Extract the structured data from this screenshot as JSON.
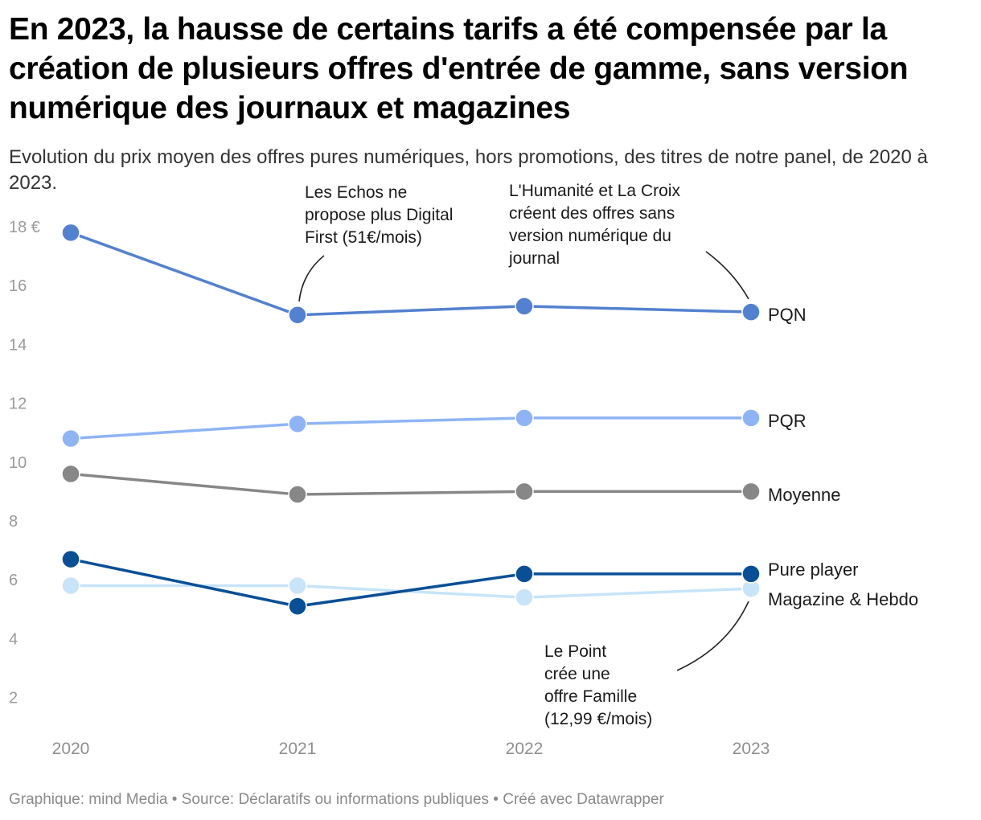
{
  "title": "En 2023, la hausse de certains tarifs a été compensée par la création de plusieurs offres d'entrée de gamme, sans version numérique des journaux et magazines",
  "subtitle": "Evolution du prix moyen des offres pures numériques, hors promotions, des titres de notre panel, de 2020 à 2023.",
  "footer": "Graphique: mind Media • Source: Déclaratifs ou informations publiques • Créé avec Datawrapper",
  "chart_data": {
    "type": "line",
    "x": [
      "2020",
      "2021",
      "2022",
      "2023"
    ],
    "ylim": [
      1,
      18.5
    ],
    "yticks": [
      2,
      4,
      6,
      8,
      10,
      12,
      14,
      16,
      18
    ],
    "ytick_labels": [
      "2",
      "4",
      "6",
      "8",
      "10",
      "12",
      "14",
      "16",
      "18 €"
    ],
    "series": [
      {
        "name": "PQN",
        "values": [
          17.8,
          15.0,
          15.3,
          15.1
        ],
        "color": "#5381cf"
      },
      {
        "name": "PQR",
        "values": [
          10.8,
          11.3,
          11.5,
          11.5
        ],
        "color": "#8fb4f6"
      },
      {
        "name": "Moyenne",
        "values": [
          9.6,
          8.9,
          9.0,
          9.0
        ],
        "color": "#878787"
      },
      {
        "name": "Magazine & Hebdo",
        "values": [
          5.8,
          5.8,
          5.4,
          5.7
        ],
        "color": "#c7e4f9"
      },
      {
        "name": "Pure player",
        "values": [
          6.7,
          5.1,
          6.2,
          6.2
        ],
        "color": "#084f96"
      }
    ],
    "annotations": [
      {
        "lines": [
          "Les Echos ne",
          "propose plus Digital",
          "First (51€/mois)"
        ]
      },
      {
        "lines": [
          "L'Humanité et La Croix",
          "créent des offres sans",
          "version numérique du",
          "journal"
        ]
      },
      {
        "lines": [
          "Le Point",
          "crée une",
          "offre Famille",
          "(12,99 €/mois)"
        ]
      }
    ],
    "grid": false,
    "legend": "direct labels at line ends"
  }
}
